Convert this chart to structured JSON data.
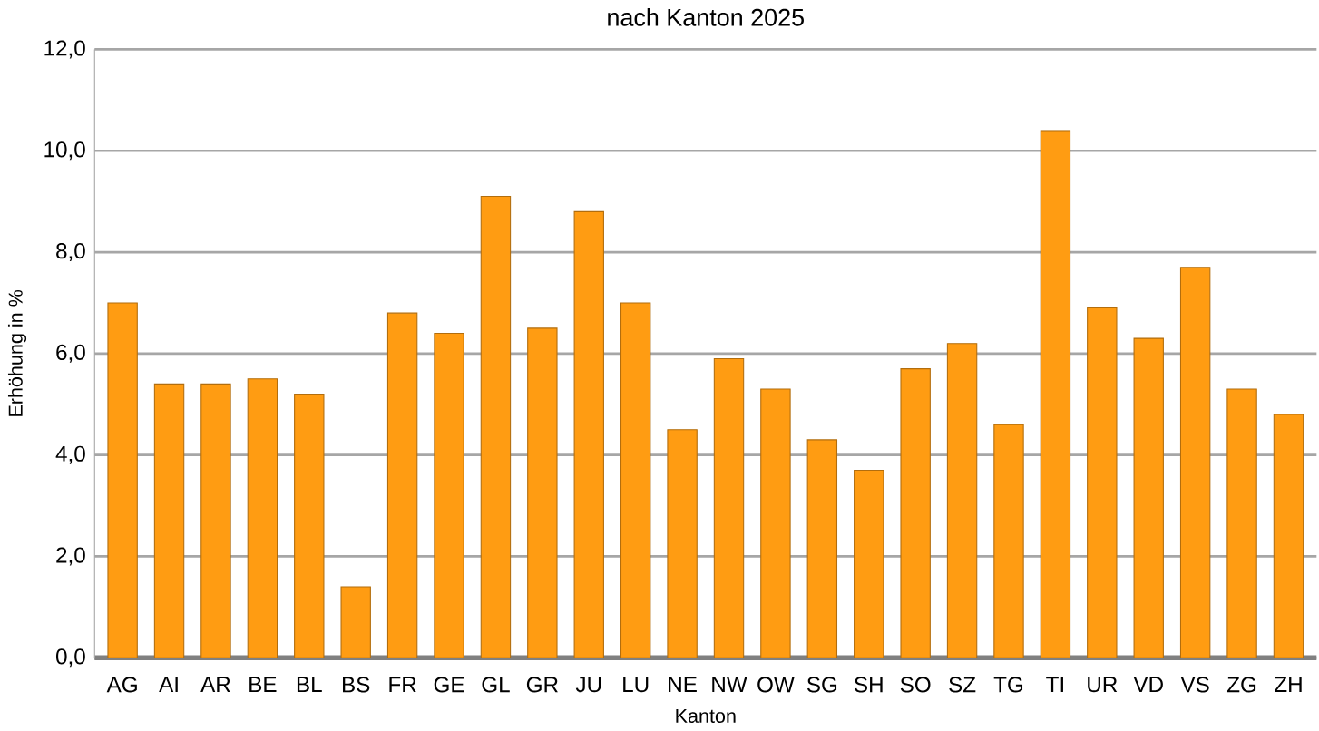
{
  "chart_data": {
    "type": "bar",
    "title": "nach Kanton 2025",
    "xlabel": "Kanton",
    "ylabel": "Erhöhung in %",
    "categories": [
      "AG",
      "AI",
      "AR",
      "BE",
      "BL",
      "BS",
      "FR",
      "GE",
      "GL",
      "GR",
      "JU",
      "LU",
      "NE",
      "NW",
      "OW",
      "SG",
      "SH",
      "SO",
      "SZ",
      "TG",
      "TI",
      "UR",
      "VD",
      "VS",
      "ZG",
      "ZH"
    ],
    "values": [
      7.0,
      5.4,
      5.4,
      5.5,
      5.2,
      1.4,
      6.8,
      6.4,
      9.1,
      6.5,
      8.8,
      7.0,
      4.5,
      5.9,
      5.3,
      4.3,
      3.7,
      5.7,
      6.2,
      4.6,
      10.4,
      6.9,
      6.3,
      7.7,
      5.3,
      4.8
    ],
    "color": "#ff9c12",
    "ylim": [
      0,
      12
    ],
    "yticks": [
      {
        "value": 0,
        "label": "0,0"
      },
      {
        "value": 2,
        "label": "2,0"
      },
      {
        "value": 4,
        "label": "4,0"
      },
      {
        "value": 6,
        "label": "6,0"
      },
      {
        "value": 8,
        "label": "8,0"
      },
      {
        "value": 10,
        "label": "10,0"
      },
      {
        "value": 12,
        "label": "12,0"
      }
    ],
    "grid": "y"
  }
}
